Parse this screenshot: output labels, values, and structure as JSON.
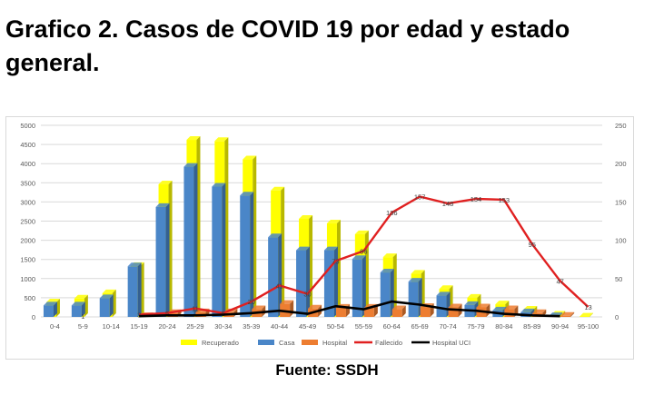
{
  "header": {
    "title": "Grafico 2. Casos de COVID 19 por edad y estado general."
  },
  "source": "Fuente: SSDH",
  "chart_data": {
    "type": "bar",
    "categories": [
      "0-4",
      "5-9",
      "10-14",
      "15-19",
      "20-24",
      "25-29",
      "30-34",
      "35-39",
      "40-44",
      "45-49",
      "50-54",
      "55-59",
      "60-64",
      "65-69",
      "70-74",
      "75-79",
      "80-84",
      "85-89",
      "90-94",
      "95-100"
    ],
    "y_left": {
      "lim": [
        0,
        5000
      ],
      "ticks": [
        "0",
        "500",
        "1000",
        "1500",
        "2000",
        "2500",
        "3000",
        "3500",
        "4000",
        "4500",
        "5000"
      ]
    },
    "y_right": {
      "lim": [
        0,
        250
      ],
      "ticks": [
        "0",
        "50",
        "100",
        "150",
        "200",
        "250"
      ]
    },
    "grid": true,
    "legend_position": "bottom",
    "series": [
      {
        "name": "Recuperado",
        "type": "bar",
        "axis": "left",
        "color": "#ffff00",
        "values": [
          380,
          480,
          620,
          1330,
          3460,
          4620,
          4590,
          4110,
          3300,
          2560,
          2440,
          2160,
          1560,
          1130,
          730,
          500,
          330,
          190,
          60,
          10
        ]
      },
      {
        "name": "Casa",
        "type": "bar",
        "axis": "left",
        "color": "#4a86c8",
        "values": [
          300,
          300,
          490,
          1320,
          2870,
          3920,
          3400,
          3170,
          2080,
          1740,
          1740,
          1510,
          1160,
          920,
          560,
          310,
          170,
          120,
          20,
          0
        ]
      },
      {
        "name": "Hospital",
        "type": "bar",
        "axis": "left",
        "color": "#ed7d31",
        "values": [
          0,
          0,
          0,
          20,
          100,
          120,
          120,
          200,
          340,
          220,
          240,
          240,
          200,
          260,
          250,
          250,
          200,
          100,
          30,
          0
        ]
      },
      {
        "name": "Fallecido",
        "type": "line",
        "axis": "right",
        "color": "#e02020",
        "values": [
          null,
          1,
          null,
          3,
          5,
          11,
          5,
          20,
          41,
          30,
          73,
          86,
          136,
          157,
          148,
          154,
          153,
          95,
          47,
          13
        ],
        "labels": [
          "",
          "1",
          "",
          "3",
          "5",
          "11",
          "5",
          "20",
          "41",
          "30",
          "73",
          "86",
          "136",
          "157",
          "148",
          "154",
          "153",
          "95",
          "47",
          "13"
        ]
      },
      {
        "name": "Hospital UCI",
        "type": "line",
        "axis": "right",
        "color": "#000000",
        "values": [
          null,
          null,
          null,
          1,
          2,
          2,
          3,
          5,
          8,
          4,
          14,
          10,
          20,
          16,
          10,
          8,
          4,
          2,
          1,
          null
        ]
      }
    ]
  }
}
